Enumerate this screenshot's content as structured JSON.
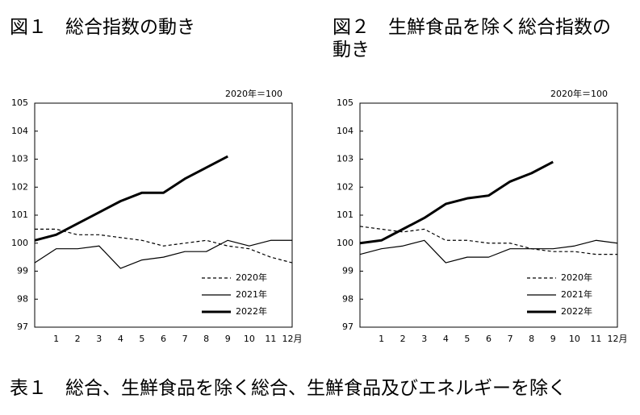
{
  "chart_data": [
    {
      "type": "line",
      "title": "図１　総合指数の動き",
      "unit_note": "2020年＝100",
      "categories": [
        null,
        "1",
        "2",
        "3",
        "4",
        "5",
        "6",
        "7",
        "8",
        "9",
        "10",
        "11",
        "12月"
      ],
      "ylim": [
        97,
        105
      ],
      "yticks": [
        97,
        98,
        99,
        100,
        101,
        102,
        103,
        104,
        105
      ],
      "legend": "lower right",
      "series": [
        {
          "name": "2020年",
          "color": "#000000",
          "line_style": "dashed",
          "line_width": 1.2,
          "values": [
            100.5,
            100.5,
            100.3,
            100.3,
            100.2,
            100.1,
            99.9,
            100.0,
            100.1,
            99.9,
            99.8,
            99.5,
            99.3
          ]
        },
        {
          "name": "2021年",
          "color": "#000000",
          "line_style": "solid",
          "line_width": 1.2,
          "values": [
            99.3,
            99.8,
            99.8,
            99.9,
            99.1,
            99.4,
            99.5,
            99.7,
            99.7,
            100.1,
            99.9,
            100.1,
            100.1
          ]
        },
        {
          "name": "2022年",
          "color": "#000000",
          "line_style": "solid",
          "line_width": 3,
          "values": [
            100.1,
            100.3,
            100.7,
            101.1,
            101.5,
            101.8,
            101.8,
            102.3,
            102.7,
            103.1,
            null,
            null,
            null
          ]
        }
      ]
    },
    {
      "type": "line",
      "title": "図２　生鮮食品を除く総合指数の動き",
      "unit_note": "2020年＝100",
      "categories": [
        null,
        "1",
        "2",
        "3",
        "4",
        "5",
        "6",
        "7",
        "8",
        "9",
        "10",
        "11",
        "12月"
      ],
      "ylim": [
        97,
        105
      ],
      "yticks": [
        97,
        98,
        99,
        100,
        101,
        102,
        103,
        104,
        105
      ],
      "legend": "lower right",
      "series": [
        {
          "name": "2020年",
          "color": "#000000",
          "line_style": "dashed",
          "line_width": 1.2,
          "values": [
            100.6,
            100.5,
            100.4,
            100.5,
            100.1,
            100.1,
            100.0,
            100.0,
            99.8,
            99.7,
            99.7,
            99.6,
            99.6
          ]
        },
        {
          "name": "2021年",
          "color": "#000000",
          "line_style": "solid",
          "line_width": 1.2,
          "values": [
            99.6,
            99.8,
            99.9,
            100.1,
            99.3,
            99.5,
            99.5,
            99.8,
            99.8,
            99.8,
            99.9,
            100.1,
            100.0
          ]
        },
        {
          "name": "2022年",
          "color": "#000000",
          "line_style": "solid",
          "line_width": 3,
          "values": [
            100.0,
            100.1,
            100.5,
            100.9,
            101.4,
            101.6,
            101.7,
            102.2,
            102.5,
            102.9,
            null,
            null,
            null
          ]
        }
      ]
    }
  ],
  "caption": "表１　総合、生鮮食品を除く総合、生鮮食品及びエネルギーを除く"
}
